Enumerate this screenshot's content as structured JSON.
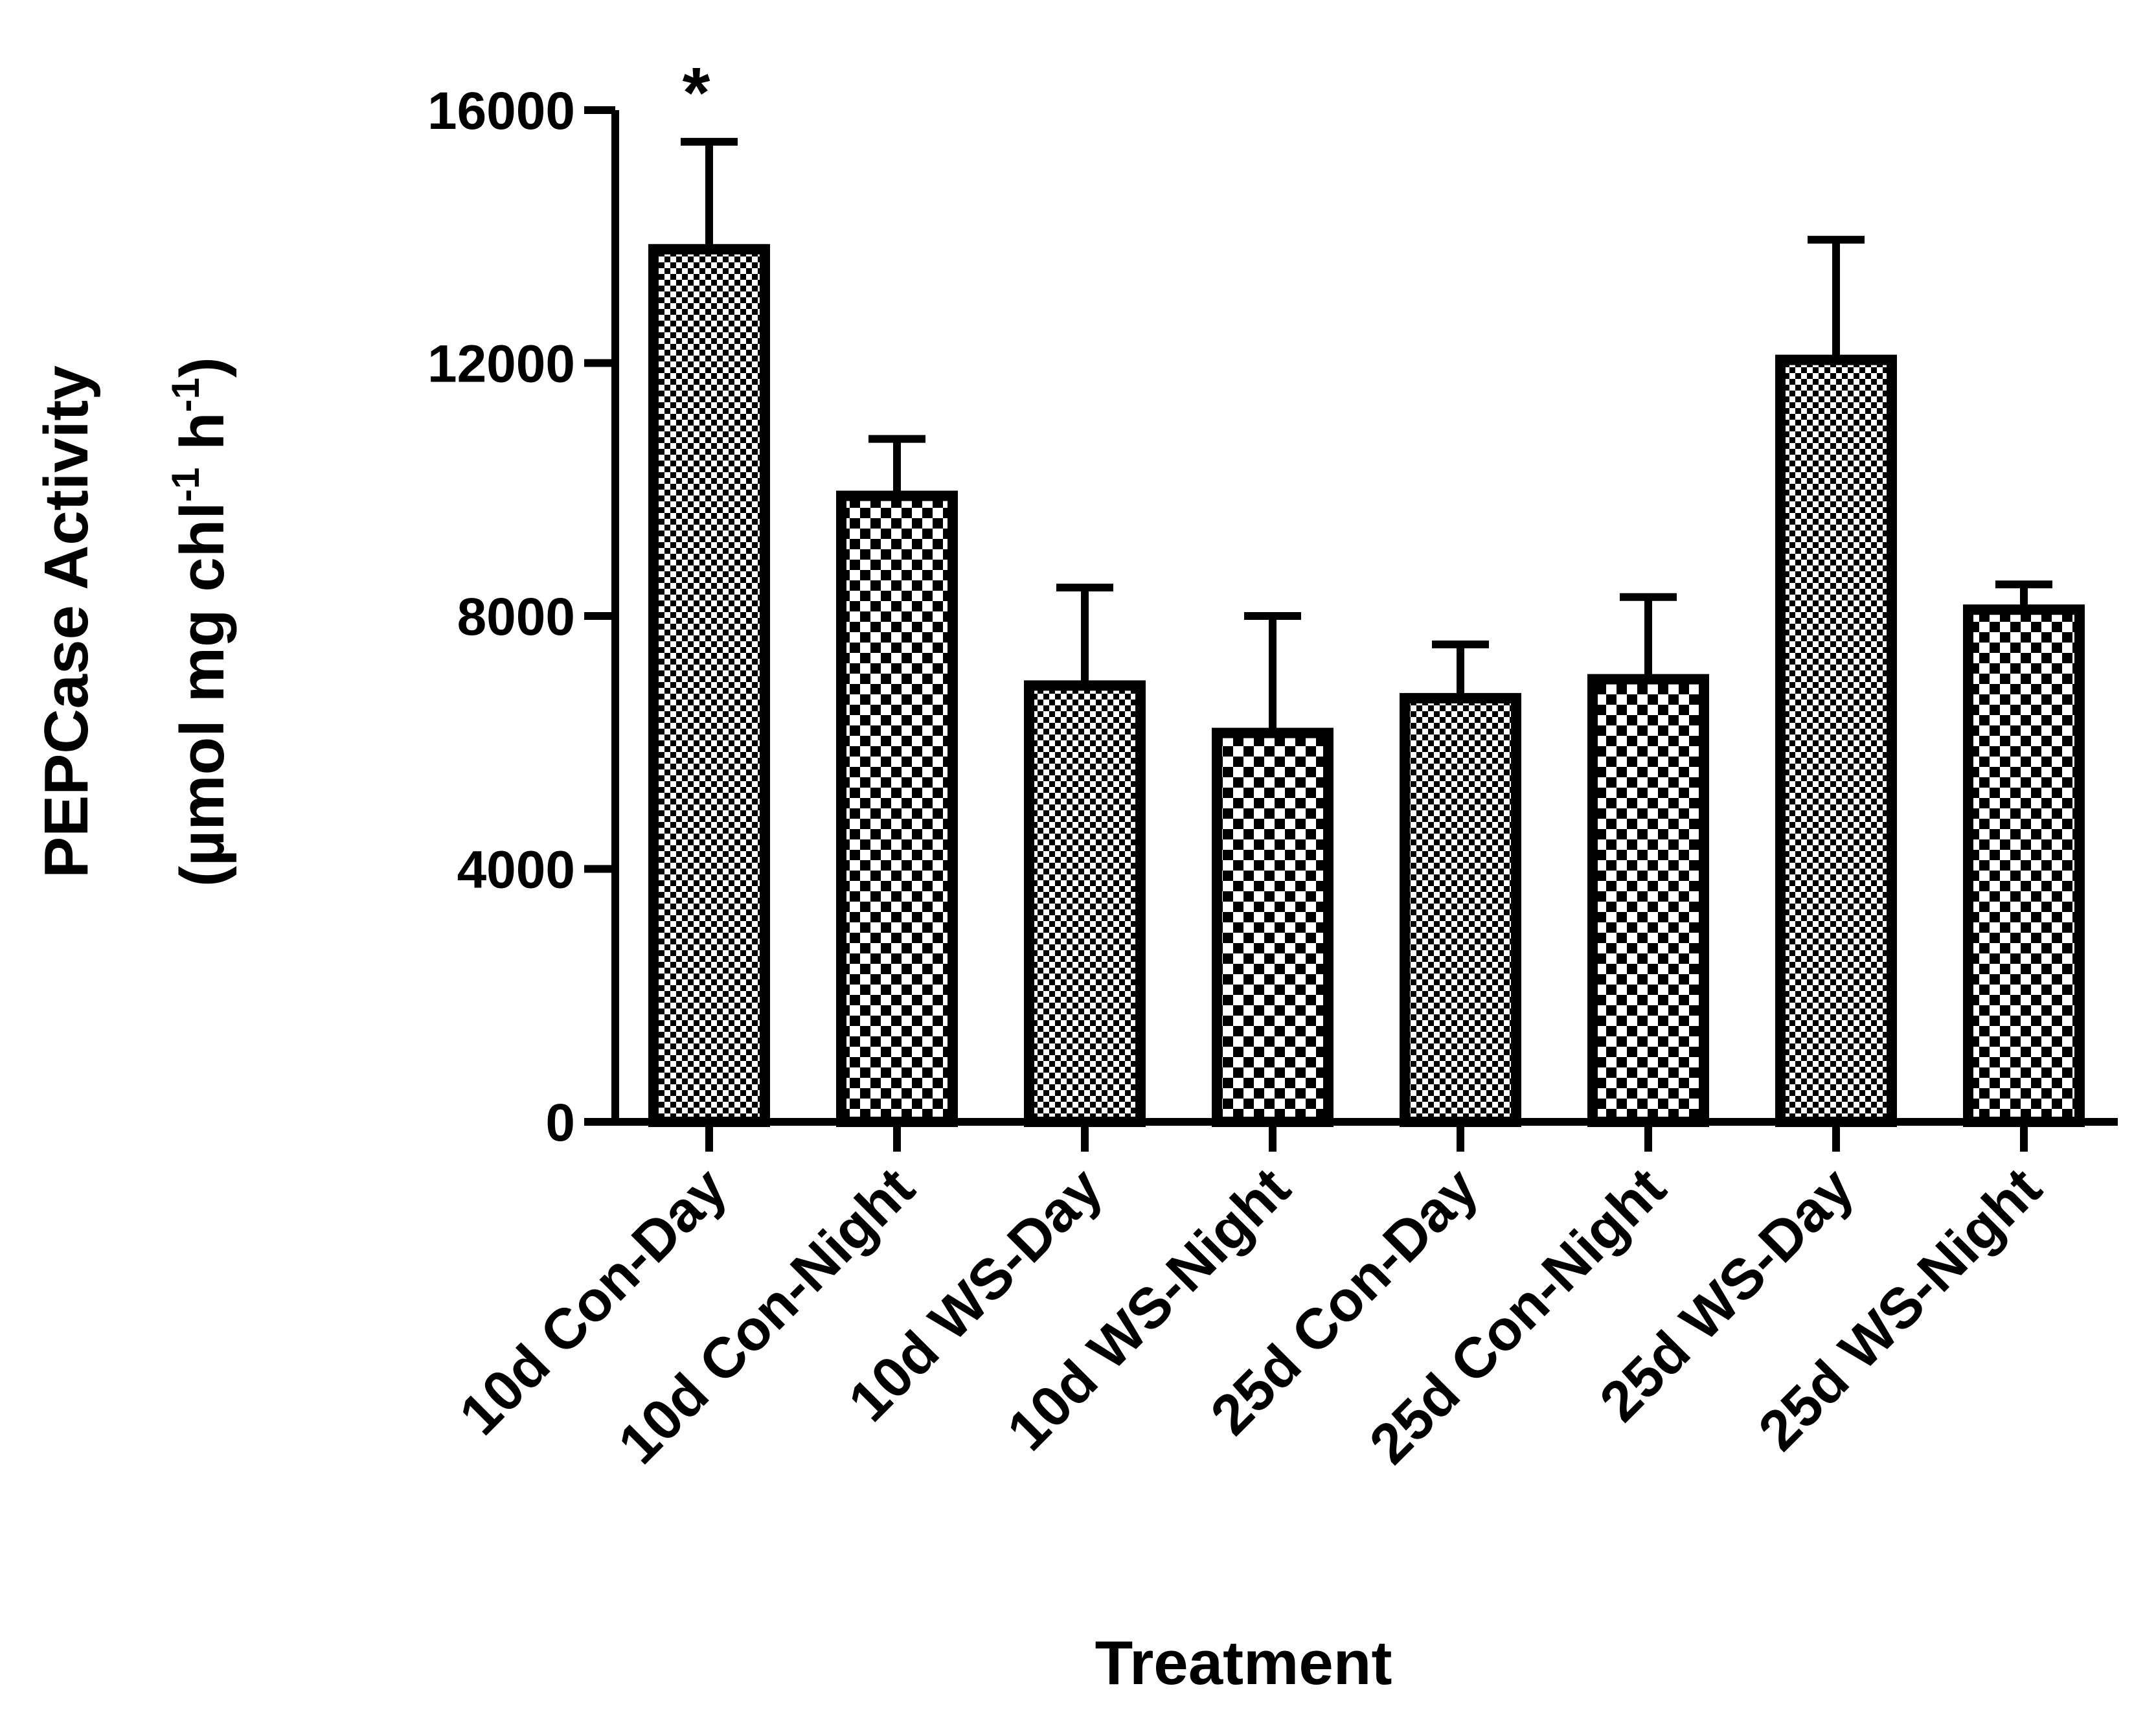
{
  "chart_data": {
    "type": "bar",
    "title": "",
    "categories": [
      "10d Con-Day",
      "10d Con-Night",
      "10d WS-Day",
      "10d WS-Night",
      "25d Con-Day",
      "25d Con-Night",
      "25d WS-Day",
      "25d WS-Night"
    ],
    "values": [
      13800,
      9900,
      6900,
      6150,
      6700,
      7000,
      12050,
      8100
    ],
    "error_upper": [
      1700,
      900,
      1550,
      1850,
      850,
      1300,
      1900,
      400
    ],
    "patterns": [
      "fine",
      "coarse",
      "fine",
      "coarse",
      "fine",
      "coarse",
      "fine",
      "coarse"
    ],
    "xlabel": "Treatment",
    "ylabel_line1": "PEPCase Activity",
    "ylabel_line2_prefix": "(µmol mg chl",
    "ylabel_sup1": "-1",
    "ylabel_mid": " h",
    "ylabel_sup2": "-1",
    "ylabel_line2_suffix": ")",
    "ylim": [
      0,
      16000
    ],
    "yticks": [
      "0",
      "4000",
      "8000",
      "12000",
      "16000"
    ],
    "annotations": [
      {
        "category": "10d Con-Day",
        "text": "*"
      }
    ],
    "grid": false,
    "legend": "none",
    "colors": {
      "stroke": "#000000",
      "fill": "#ffffff"
    }
  }
}
